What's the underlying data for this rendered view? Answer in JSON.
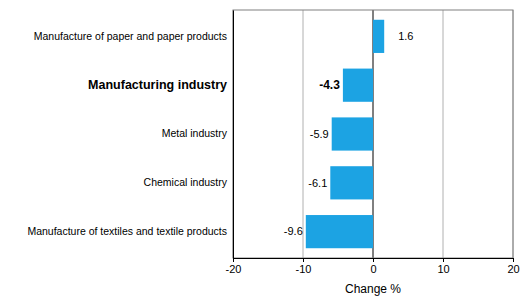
{
  "chart_data": {
    "type": "bar",
    "orientation": "horizontal",
    "categories": [
      "Manufacture of paper and paper products",
      "Manufacturing industry",
      "Metal industry",
      "Chemical industry",
      "Manufacture of textiles and textile products"
    ],
    "values": [
      1.6,
      -4.3,
      -5.9,
      -6.1,
      -9.6
    ],
    "color": "#1ca3e3",
    "xlim": [
      -20,
      20
    ],
    "xticks": [
      -20,
      -10,
      0,
      10,
      20
    ],
    "xlabel": "Change %",
    "grid": true,
    "data_labels": true
  }
}
